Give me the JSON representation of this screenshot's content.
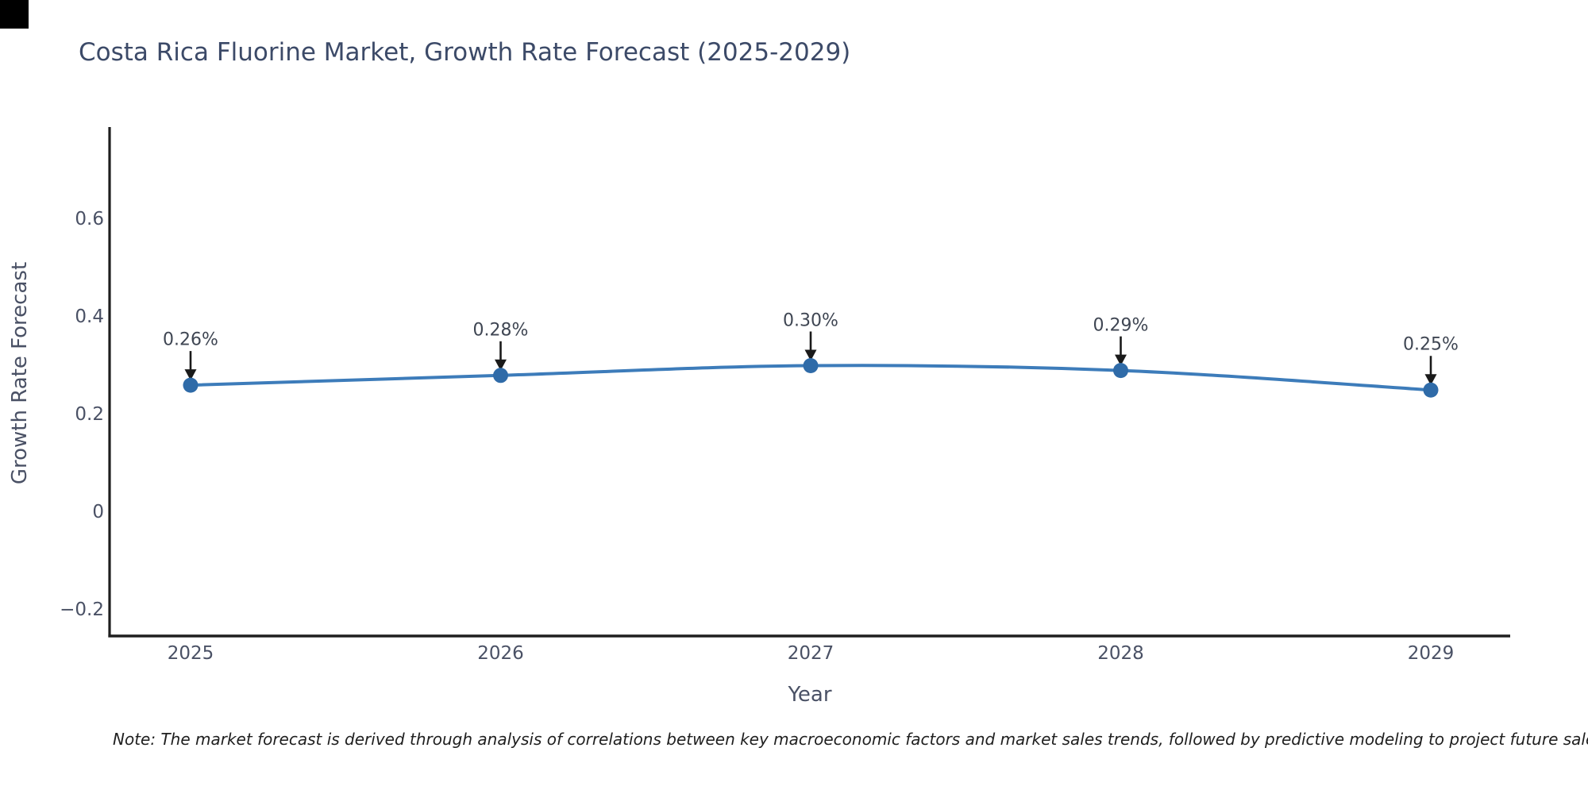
{
  "title": "Costa Rica Fluorine Market, Growth Rate Forecast (2025-2029)",
  "axes": {
    "x_label": "Year",
    "y_label": "Growth Rate Forecast",
    "x_ticks": [
      "2025",
      "2026",
      "2027",
      "2028",
      "2029"
    ],
    "y_ticks": [
      "0.6",
      "0.4",
      "0.2",
      "0",
      "−0.2"
    ],
    "y_tick_values": [
      0.6,
      0.4,
      0.2,
      0,
      -0.2
    ]
  },
  "note": "Note: The market forecast is derived through analysis of correlations between key macroeconomic factors and market sales trends, followed by predictive modeling to project future sales",
  "chart_data": {
    "type": "line",
    "title": "Costa Rica Fluorine Market, Growth Rate Forecast (2025-2029)",
    "xlabel": "Year",
    "ylabel": "Growth Rate Forecast",
    "x": [
      2025,
      2026,
      2027,
      2028,
      2029
    ],
    "y": [
      0.26,
      0.28,
      0.3,
      0.29,
      0.25
    ],
    "point_labels": [
      "0.26%",
      "0.28%",
      "0.30%",
      "0.29%",
      "0.25%"
    ],
    "line_shape": "spline",
    "markers": true,
    "grid": false,
    "legend": false,
    "ylim": [
      -0.26,
      0.79
    ],
    "annotation_arrows": "black arrows pointing down to each data point"
  },
  "colors": {
    "background": "#ffffff",
    "line": "#3d7cba",
    "marker": "#2f6ba8",
    "axis": "#1f1f1f",
    "arrow": "#1a1a1a",
    "title_text": "#3c4a68",
    "tick_text": "#4a5165",
    "annotation_text": "#3f4653",
    "note_text": "#1f1f1f",
    "corner_square": "#000000"
  }
}
